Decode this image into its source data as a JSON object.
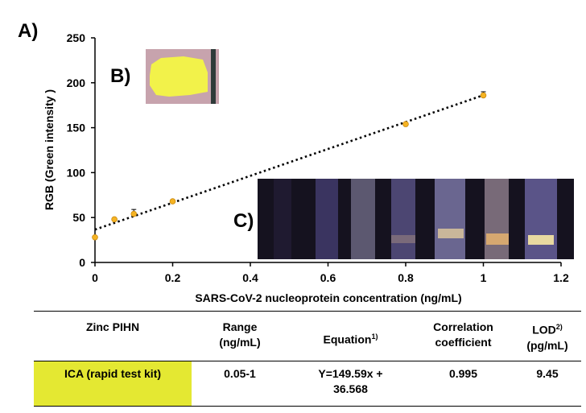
{
  "panel_labels": {
    "a": "A)",
    "b": "B)",
    "c": "C)"
  },
  "chart_data": {
    "type": "scatter",
    "title": "",
    "xlabel": "SARS-CoV-2 nucleoprotein concentration (ng/mL)",
    "ylabel": "RGB (Green intensity )",
    "xlim": [
      0,
      1.2
    ],
    "ylim": [
      0,
      250
    ],
    "xticks": [
      0,
      0.2,
      0.4,
      0.6,
      0.8,
      1,
      1.2
    ],
    "xtick_labels": [
      "0",
      "0.2",
      "0.4",
      "0.6",
      "0.8",
      "1",
      "1.2"
    ],
    "yticks": [
      0,
      50,
      100,
      150,
      200,
      250
    ],
    "ytick_labels": [
      "0",
      "50",
      "100",
      "150",
      "200",
      "250"
    ],
    "points": [
      {
        "x": 0,
        "y": 28,
        "err": 0
      },
      {
        "x": 0.05,
        "y": 48,
        "err": 0
      },
      {
        "x": 0.1,
        "y": 54,
        "err": 5
      },
      {
        "x": 0.2,
        "y": 68,
        "err": 0
      },
      {
        "x": 0.8,
        "y": 154,
        "err": 0
      },
      {
        "x": 1,
        "y": 186,
        "err": 4
      }
    ],
    "trendline": {
      "slope": 149.59,
      "intercept": 36.568,
      "x_range": [
        0,
        1
      ],
      "style": "dotted"
    },
    "colors": {
      "marker": "#f5b323",
      "marker_edge": "#c98a10",
      "trendline": "#000000",
      "axis": "#000000"
    }
  },
  "insets": {
    "b": {
      "description_color": "#f2f24a",
      "background": "#c7a3ad"
    },
    "c": {
      "strips": 8,
      "background": "#15121f"
    }
  },
  "table": {
    "headers": [
      {
        "text": "Zinc PIHN",
        "sup": ""
      },
      {
        "text": "Range\n(ng/mL)",
        "sup": ""
      },
      {
        "text": "Equation",
        "sup": "1)"
      },
      {
        "text": "Correlation\ncoefficient",
        "sup": ""
      },
      {
        "text": "LOD",
        "sup": "2)",
        "line2": "(pg/mL)"
      }
    ],
    "row": {
      "name": "ICA (rapid test kit)",
      "range": "0.05-1",
      "equation": "Y=149.59x +\n36.568",
      "correlation": "0.995",
      "lod": "9.45"
    },
    "highlight_color": "#e4e832"
  }
}
